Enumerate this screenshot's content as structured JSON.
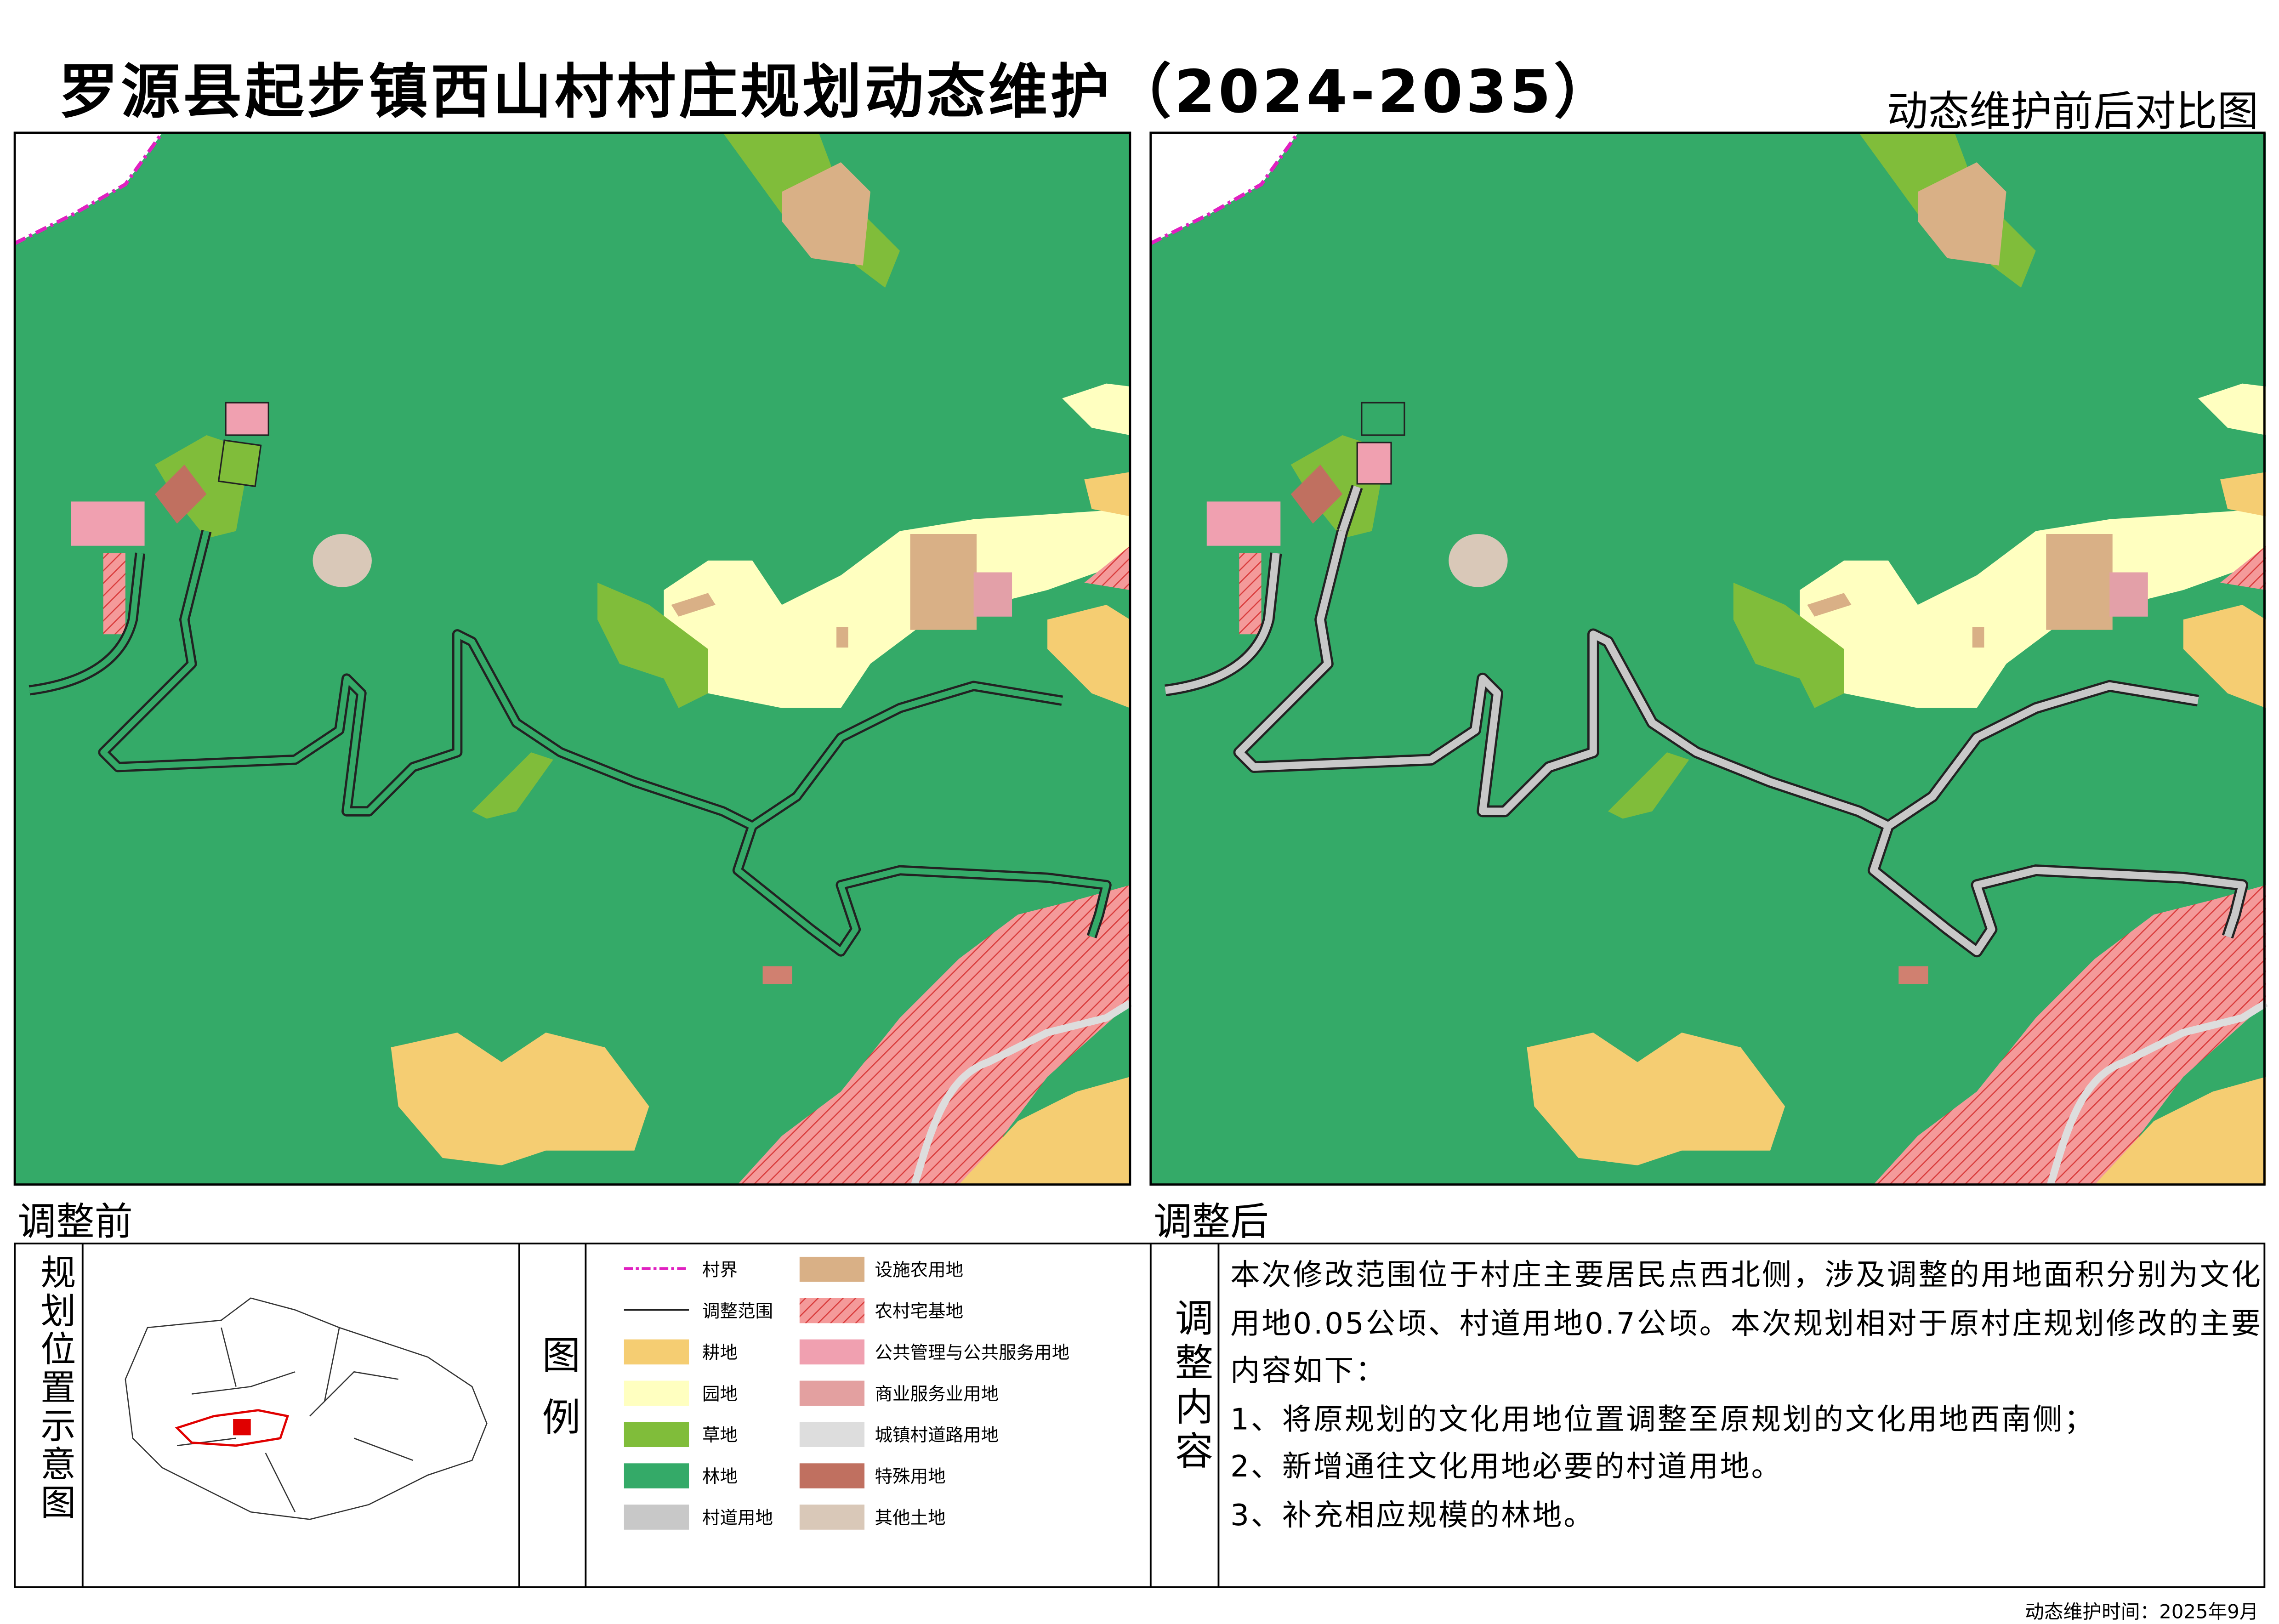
{
  "header": {
    "title": "罗源县起步镇西山村村庄规划动态维护（2024-2035）",
    "subtitle": "动态维护前后对比图"
  },
  "maps": {
    "before": "调整前",
    "after": "调整后"
  },
  "location": {
    "label": "规划位置示意图"
  },
  "legend": {
    "title": "图例",
    "items": [
      "村界",
      "调整范围",
      "耕地",
      "园地",
      "草地",
      "林地",
      "村道用地",
      "设施农用地",
      "农村宅基地",
      "公共管理与公共服务用地",
      "商业服务业用地",
      "城镇村道路用地",
      "特殊用地",
      "其他土地"
    ]
  },
  "content": {
    "label": "调整内容",
    "paragraphs": [
      "本次修改范围位于村庄主要居民点西北侧，涉及调整的用地面积分别为文化用地0.05公顷、村道用地0.7公顷。本次规划相对于原村庄规划修改的主要内容如下：",
      "1、将原规划的文化用地位置调整至原规划的文化用地西南侧；",
      "2、新增通往文化用地必要的村道用地。",
      "3、补充相应规模的林地。"
    ]
  },
  "footer": "动态维护时间：2025年9月"
}
